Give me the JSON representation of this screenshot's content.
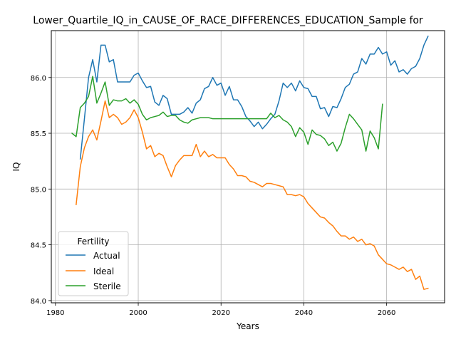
{
  "chart_data": {
    "type": "line",
    "title": "Lower_Quartile_IQ_in_CAUSE_OF_RACE_DIFFERENCES_EDUCATION_Sample for",
    "xlabel": "Years",
    "ylabel": "IQ",
    "xlim": [
      1979,
      2074
    ],
    "ylim": [
      83.98,
      86.42
    ],
    "xticks": [
      1980,
      2000,
      2020,
      2040,
      2060
    ],
    "xtick_labels": [
      "1980",
      "2000",
      "2020",
      "2040",
      "2060"
    ],
    "yticks": [
      84.0,
      84.5,
      85.0,
      85.5,
      86.0
    ],
    "ytick_labels": [
      "84.0",
      "84.5",
      "85.0",
      "85.5",
      "86.0"
    ],
    "grid": true,
    "legend": {
      "title": "Fertility",
      "placement": "lower-left"
    },
    "series": [
      {
        "name": "Actual",
        "color": "#1f77b4",
        "x": [
          1986,
          1987,
          1988,
          1989,
          1990,
          1991,
          1992,
          1993,
          1994,
          1995,
          1996,
          1997,
          1998,
          1999,
          2000,
          2001,
          2002,
          2003,
          2004,
          2005,
          2006,
          2007,
          2008,
          2009,
          2010,
          2011,
          2012,
          2013,
          2014,
          2015,
          2016,
          2017,
          2018,
          2019,
          2020,
          2021,
          2022,
          2023,
          2024,
          2025,
          2026,
          2027,
          2028,
          2029,
          2030,
          2031,
          2032,
          2033,
          2034,
          2035,
          2036,
          2037,
          2038,
          2039,
          2040,
          2041,
          2042,
          2043,
          2044,
          2045,
          2046,
          2047,
          2048,
          2049,
          2050,
          2051,
          2052,
          2053,
          2054,
          2055,
          2056,
          2057,
          2058,
          2059,
          2060,
          2061,
          2062,
          2063,
          2064,
          2065,
          2066,
          2067,
          2068,
          2069,
          2070
        ],
        "values": [
          85.27,
          85.63,
          86.0,
          86.16,
          85.96,
          86.29,
          86.29,
          86.14,
          86.16,
          85.96,
          85.96,
          85.96,
          85.96,
          86.02,
          86.04,
          85.97,
          85.91,
          85.92,
          85.78,
          85.75,
          85.84,
          85.81,
          85.67,
          85.67,
          85.67,
          85.69,
          85.73,
          85.68,
          85.77,
          85.8,
          85.9,
          85.92,
          86.0,
          85.93,
          85.95,
          85.84,
          85.92,
          85.8,
          85.8,
          85.74,
          85.65,
          85.61,
          85.56,
          85.6,
          85.54,
          85.58,
          85.63,
          85.67,
          85.79,
          85.95,
          85.91,
          85.95,
          85.88,
          85.97,
          85.91,
          85.9,
          85.83,
          85.83,
          85.72,
          85.73,
          85.65,
          85.74,
          85.73,
          85.81,
          85.91,
          85.94,
          86.03,
          86.05,
          86.17,
          86.12,
          86.21,
          86.21,
          86.27,
          86.21,
          86.23,
          86.11,
          86.15,
          86.05,
          86.07,
          86.03,
          86.08,
          86.1,
          86.17,
          86.29,
          86.37
        ]
      },
      {
        "name": "Ideal",
        "color": "#ff7f0e",
        "x": [
          1985,
          1986,
          1987,
          1988,
          1989,
          1990,
          1991,
          1992,
          1993,
          1994,
          1995,
          1996,
          1997,
          1998,
          1999,
          2000,
          2001,
          2002,
          2003,
          2004,
          2005,
          2006,
          2007,
          2008,
          2009,
          2010,
          2011,
          2012,
          2013,
          2014,
          2015,
          2016,
          2017,
          2018,
          2019,
          2020,
          2021,
          2022,
          2023,
          2024,
          2025,
          2026,
          2027,
          2028,
          2029,
          2030,
          2031,
          2032,
          2033,
          2034,
          2035,
          2036,
          2037,
          2038,
          2039,
          2040,
          2041,
          2042,
          2043,
          2044,
          2045,
          2046,
          2047,
          2048,
          2049,
          2050,
          2051,
          2052,
          2053,
          2054,
          2055,
          2056,
          2057,
          2058,
          2059,
          2060,
          2061,
          2062,
          2063,
          2064,
          2065,
          2066,
          2067,
          2068,
          2069,
          2070
        ],
        "values": [
          84.86,
          85.2,
          85.37,
          85.47,
          85.53,
          85.44,
          85.61,
          85.79,
          85.64,
          85.67,
          85.64,
          85.58,
          85.6,
          85.64,
          85.71,
          85.64,
          85.51,
          85.36,
          85.39,
          85.29,
          85.32,
          85.3,
          85.2,
          85.11,
          85.21,
          85.26,
          85.3,
          85.3,
          85.3,
          85.4,
          85.29,
          85.34,
          85.29,
          85.31,
          85.28,
          85.28,
          85.28,
          85.22,
          85.18,
          85.12,
          85.12,
          85.11,
          85.07,
          85.06,
          85.04,
          85.02,
          85.05,
          85.05,
          85.04,
          85.03,
          85.02,
          84.95,
          84.95,
          84.94,
          84.95,
          84.93,
          84.87,
          84.83,
          84.79,
          84.75,
          84.74,
          84.7,
          84.67,
          84.62,
          84.58,
          84.58,
          84.55,
          84.57,
          84.53,
          84.55,
          84.5,
          84.51,
          84.49,
          84.41,
          84.37,
          84.33,
          84.32,
          84.3,
          84.28,
          84.3,
          84.26,
          84.28,
          84.19,
          84.22,
          84.1,
          84.11
        ]
      },
      {
        "name": "Sterile",
        "color": "#2ca02c",
        "x": [
          1984,
          1985,
          1986,
          1987,
          1988,
          1989,
          1990,
          1991,
          1992,
          1993,
          1994,
          1995,
          1996,
          1997,
          1998,
          1999,
          2000,
          2001,
          2002,
          2003,
          2004,
          2005,
          2006,
          2007,
          2008,
          2009,
          2010,
          2011,
          2012,
          2013,
          2014,
          2015,
          2016,
          2017,
          2018,
          2019,
          2020,
          2021,
          2022,
          2023,
          2024,
          2025,
          2026,
          2027,
          2028,
          2029,
          2030,
          2031,
          2032,
          2033,
          2034,
          2035,
          2036,
          2037,
          2038,
          2039,
          2040,
          2041,
          2042,
          2043,
          2044,
          2045,
          2046,
          2047,
          2048,
          2049,
          2050,
          2051,
          2052,
          2053,
          2054,
          2055,
          2056,
          2057,
          2058,
          2059
        ],
        "values": [
          85.5,
          85.47,
          85.73,
          85.77,
          85.83,
          86.01,
          85.77,
          85.86,
          85.96,
          85.75,
          85.8,
          85.79,
          85.79,
          85.81,
          85.77,
          85.8,
          85.76,
          85.67,
          85.62,
          85.64,
          85.65,
          85.66,
          85.69,
          85.65,
          85.66,
          85.66,
          85.62,
          85.6,
          85.59,
          85.62,
          85.63,
          85.64,
          85.64,
          85.64,
          85.63,
          85.63,
          85.63,
          85.63,
          85.63,
          85.63,
          85.63,
          85.63,
          85.63,
          85.63,
          85.63,
          85.63,
          85.63,
          85.63,
          85.68,
          85.64,
          85.66,
          85.62,
          85.6,
          85.56,
          85.47,
          85.55,
          85.51,
          85.4,
          85.53,
          85.49,
          85.48,
          85.45,
          85.39,
          85.42,
          85.34,
          85.41,
          85.55,
          85.67,
          85.63,
          85.58,
          85.53,
          85.34,
          85.52,
          85.46,
          85.36,
          85.76
        ]
      }
    ]
  }
}
